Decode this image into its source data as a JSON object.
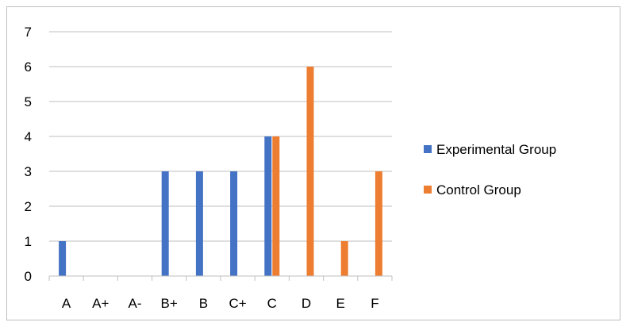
{
  "chart_data": {
    "type": "bar",
    "title": "",
    "xlabel": "",
    "ylabel": "",
    "categories": [
      "A",
      "A+",
      "A-",
      "B+",
      "B",
      "C+",
      "C",
      "D",
      "E",
      "F"
    ],
    "series": [
      {
        "name": "Experimental Group",
        "color": "#4472C4",
        "values": [
          1,
          0,
          0,
          3,
          3,
          3,
          4,
          0,
          0,
          0
        ]
      },
      {
        "name": "Control Group",
        "color": "#ED7D31",
        "values": [
          0,
          0,
          0,
          0,
          0,
          0,
          4,
          6,
          1,
          3
        ]
      }
    ],
    "ylim": [
      0,
      7
    ],
    "yticks": [
      0,
      1,
      2,
      3,
      4,
      5,
      6,
      7
    ],
    "grid": true,
    "legend_position": "right"
  }
}
